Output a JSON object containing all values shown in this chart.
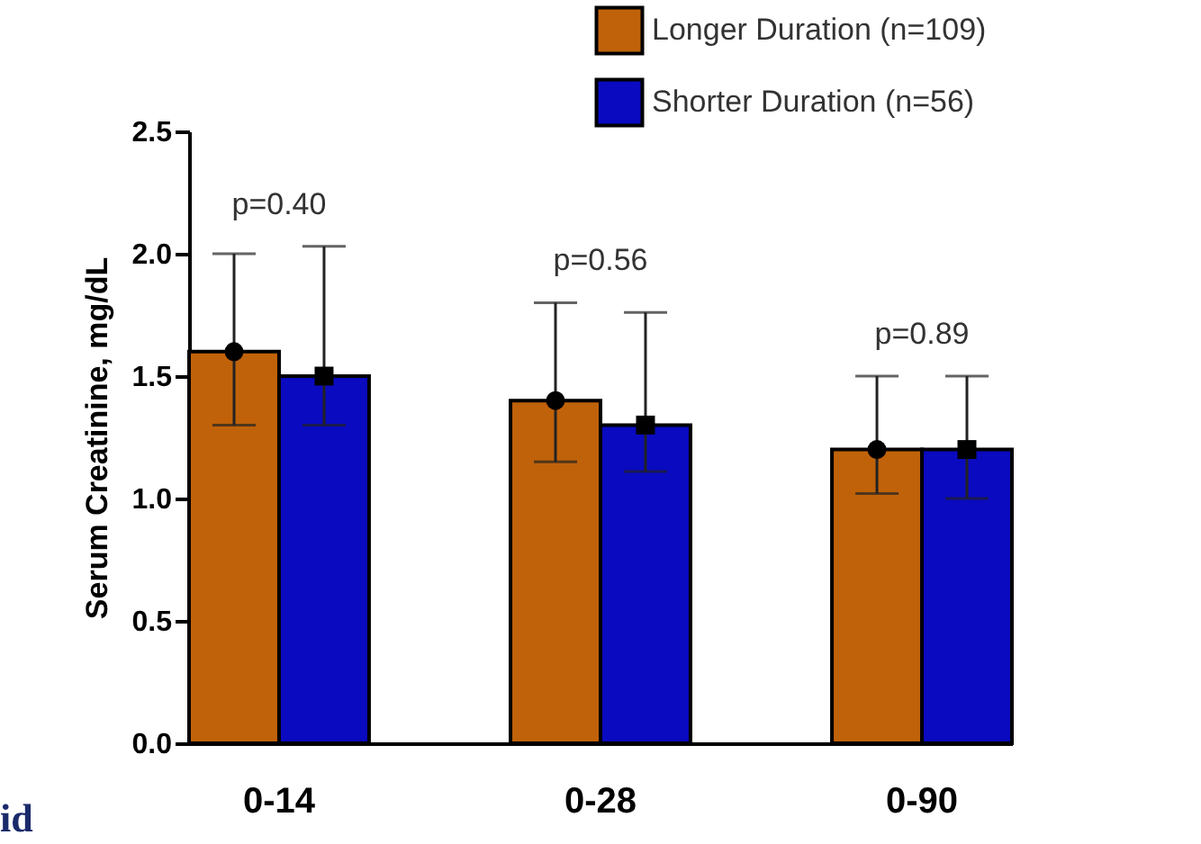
{
  "chart_data": {
    "type": "bar",
    "ylabel": "Serum Creatinine, mg/dL",
    "categories": [
      "0-14",
      "0-28",
      "0-90"
    ],
    "series": [
      {
        "name": "Longer Duration (n=109)",
        "color": "#c0620a",
        "values": [
          1.6,
          1.4,
          1.2
        ],
        "errors": [
          [
            1.3,
            2.0
          ],
          [
            1.15,
            1.8
          ],
          [
            1.02,
            1.5
          ]
        ]
      },
      {
        "name": "Shorter Duration (n=56)",
        "color": "#0a0ac0",
        "values": [
          1.5,
          1.3,
          1.2
        ],
        "errors": [
          [
            1.3,
            2.03
          ],
          [
            1.11,
            1.76
          ],
          [
            1.0,
            1.5
          ]
        ]
      },
      {
        "type": "scatter",
        "color": "#000000",
        "x": [
          "0-14",
          "0-28",
          "0-90"
        ],
        "values": [
          1.6,
          1.4,
          1.2
        ],
        "marker": "circle"
      },
      {
        "type": "scatter",
        "color": "#000000",
        "x": [
          "0-14",
          "0-28",
          "0-90"
        ],
        "values": [
          1.5,
          1.3,
          1.2
        ],
        "marker": "square"
      }
    ],
    "ylim": [
      0,
      2.5
    ],
    "yticks": [
      {
        "value": 0,
        "label": "0.0"
      },
      {
        "value": 0.5,
        "label": "0.5"
      },
      {
        "value": 1,
        "label": "1.0"
      },
      {
        "value": 1.5,
        "label": "1.5"
      },
      {
        "value": 2,
        "label": "2.0"
      },
      {
        "value": 2.5,
        "label": "2.5"
      }
    ],
    "grid": false,
    "legend": "top right",
    "annotations": [
      "p=0.40",
      "p=0.56",
      "p=0.89",
      "id"
    ]
  }
}
